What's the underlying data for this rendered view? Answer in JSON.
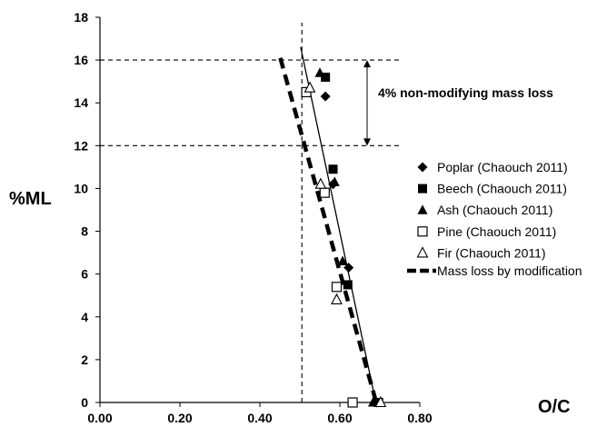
{
  "chart_data": {
    "type": "scatter",
    "xlabel": "O/C",
    "ylabel": "%ML",
    "xlim": [
      0.0,
      0.8
    ],
    "ylim": [
      0,
      18
    ],
    "x_ticks": [
      "0.00",
      "0.20",
      "0.40",
      "0.60",
      "0.80"
    ],
    "y_ticks": [
      "0",
      "2",
      "4",
      "6",
      "8",
      "10",
      "12",
      "14",
      "16",
      "18"
    ],
    "grid": false,
    "legend_position": "right",
    "series": [
      {
        "name": "Poplar (Chaouch 2011)",
        "marker": "diamond-filled",
        "points": [
          [
            0.564,
            14.3
          ],
          [
            0.583,
            10.2
          ],
          [
            0.622,
            6.3
          ],
          [
            0.692,
            0.0
          ]
        ]
      },
      {
        "name": "Beech (Chaouch 2011)",
        "marker": "square-filled",
        "points": [
          [
            0.564,
            15.2
          ],
          [
            0.583,
            10.9
          ],
          [
            0.62,
            5.5
          ],
          [
            0.697,
            0.0
          ]
        ]
      },
      {
        "name": "Ash (Chaouch 2011)",
        "marker": "triangle-filled",
        "points": [
          [
            0.55,
            15.4
          ],
          [
            0.587,
            10.3
          ],
          [
            0.607,
            6.6
          ],
          [
            0.683,
            0.0
          ]
        ]
      },
      {
        "name": "Pine (Chaouch 2011)",
        "marker": "square-open",
        "points": [
          [
            0.516,
            14.5
          ],
          [
            0.562,
            9.8
          ],
          [
            0.592,
            5.4
          ],
          [
            0.632,
            0.0
          ]
        ]
      },
      {
        "name": "Fir (Chaouch 2011)",
        "marker": "triangle-open",
        "points": [
          [
            0.525,
            14.7
          ],
          [
            0.552,
            10.2
          ],
          [
            0.592,
            4.8
          ],
          [
            0.702,
            0.0
          ]
        ]
      }
    ],
    "lines": [
      {
        "name": "Mass loss by modification",
        "style": "dashed-thick",
        "points": [
          [
            0.451,
            16.1
          ],
          [
            0.691,
            0.0
          ]
        ]
      },
      {
        "style": "solid-thin",
        "points": [
          [
            0.502,
            16.6
          ],
          [
            0.69,
            0.0
          ]
        ]
      }
    ],
    "reference_lines": [
      {
        "orientation": "horizontal",
        "y": 16,
        "style": "dashed"
      },
      {
        "orientation": "horizontal",
        "y": 12,
        "style": "dashed"
      },
      {
        "orientation": "vertical",
        "x": 0.505,
        "style": "dashed"
      }
    ],
    "annotations": [
      {
        "text": "4% non-modifying mass loss",
        "arrow": "double",
        "from_y": 12,
        "to_y": 16
      }
    ]
  }
}
